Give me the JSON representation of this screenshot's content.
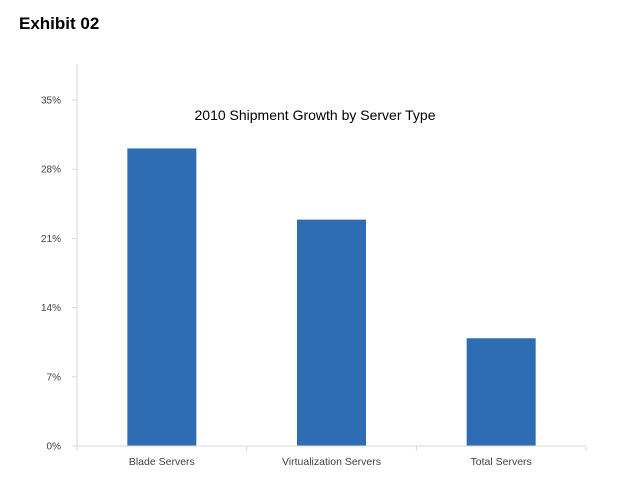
{
  "header": {
    "exhibit": "Exhibit 02"
  },
  "chart_data": {
    "type": "bar",
    "title": "2010 Shipment Growth by Server Type",
    "xlabel": "",
    "ylabel": "",
    "categories": [
      "Blade Servers",
      "Virtualization Servers",
      "Total Servers"
    ],
    "values": [
      30.1,
      22.9,
      10.9
    ],
    "unit": "%",
    "ylim": [
      0,
      35
    ],
    "yticks": [
      0,
      7,
      14,
      21,
      28,
      35
    ],
    "ytick_labels": [
      "0%",
      "7%",
      "14%",
      "21%",
      "28%",
      "35%"
    ],
    "grid": false,
    "legend": "none",
    "bar_color": "#2E6DB4",
    "axis_color": "#D9D9D9"
  }
}
